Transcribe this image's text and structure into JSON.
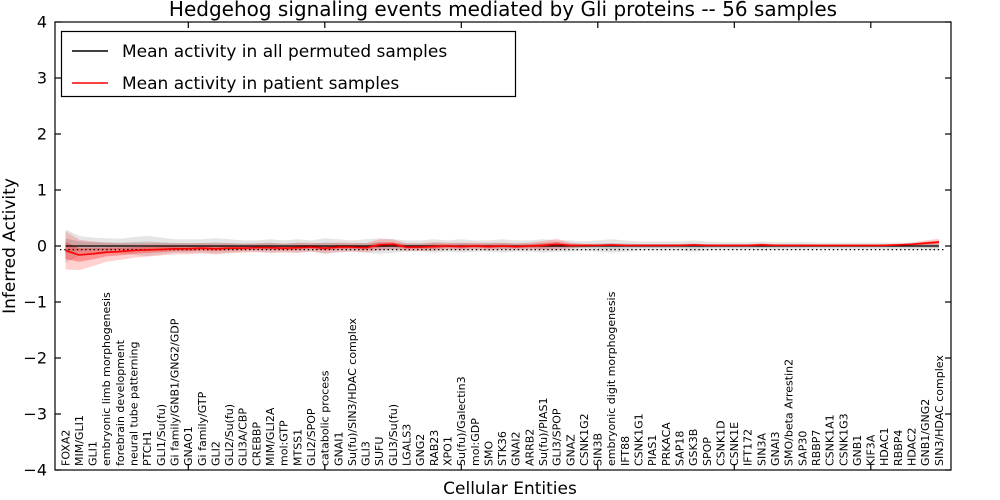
{
  "chart_data": {
    "type": "line",
    "title": "Hedgehog signaling events mediated by Gli proteins -- 56 samples",
    "xlabel": "Cellular Entities",
    "ylabel": "Inferred Activity",
    "ylim": [
      -4,
      4
    ],
    "yticks": [
      4,
      3,
      2,
      1,
      0,
      -1,
      -2,
      -3,
      -4
    ],
    "xticks_numeric": [
      10,
      20,
      30,
      40,
      50,
      60
    ],
    "grid": false,
    "legend_position": "upper left",
    "sample_count": "56",
    "categories": [
      "FOXA2",
      "MIM/GLI1",
      "GLI1",
      "embryonic limb morphogenesis",
      "forebrain development",
      "neural tube patterning",
      "PTCH1",
      "GLI1/Su(fu)",
      "Gi family/GNB1/GNG2/GDP",
      "GNAO1",
      "Gi family/GTP",
      "GLI2",
      "GLI2/Su(fu)",
      "GLI3A/CBP",
      "CREBBP",
      "MIM/GLI2A",
      "mol:GTP",
      "MTSS1",
      "GLI2/SPOP",
      "catabolic process",
      "GNAI1",
      "Su(fu)/SIN3/HDAC complex",
      "GLI3",
      "SUFU",
      "GLI3/Su(fu)",
      "LGALS3",
      "GNG2",
      "RAB23",
      "XPO1",
      "Su(fu)/Galectin3",
      "mol:GDP",
      "SMO",
      "STK36",
      "GNAI2",
      "ARRB2",
      "Su(fu)/PIAS1",
      "GLI3/SPOP",
      "GNAZ",
      "CSNK1G2",
      "SIN3B",
      "embryonic digit morphogenesis",
      "IFT88",
      "CSNK1G1",
      "PIAS1",
      "PRKACA",
      "SAP18",
      "GSK3B",
      "SPOP",
      "CSNK1D",
      "CSNK1E",
      "IFT172",
      "SIN3A",
      "GNAI3",
      "SMO/beta Arrestin2",
      "SAP30",
      "RBBP7",
      "CSNK1A1",
      "CSNK1G3",
      "GNB1",
      "KIF3A",
      "HDAC1",
      "RBBP4",
      "HDAC2",
      "GNB1/GNG2",
      "SIN3/HDAC complex"
    ],
    "series": [
      {
        "name": "Mean activity in all permuted samples",
        "color": "#000000",
        "band_color": "rgba(0,0,0,0.10)",
        "band_inner_color": "rgba(0,0,0,0.13)",
        "values": [
          0,
          0,
          0,
          0,
          0,
          0,
          0,
          0,
          0,
          0,
          0,
          0,
          0,
          0,
          0,
          0,
          0,
          0,
          0,
          0,
          0,
          0,
          0,
          0,
          0,
          0,
          0,
          0,
          0,
          0,
          0,
          0,
          0,
          0,
          0,
          0,
          0,
          0,
          0,
          0,
          0,
          0,
          0,
          0,
          0,
          0,
          0,
          0,
          0,
          0,
          0,
          0,
          0,
          0,
          0,
          0,
          0,
          0,
          0,
          0,
          0,
          0,
          0,
          0,
          0
        ],
        "std": [
          0.3,
          0.18,
          0.15,
          0.14,
          0.13,
          0.16,
          0.18,
          0.15,
          0.12,
          0.12,
          0.12,
          0.14,
          0.12,
          0.1,
          0.1,
          0.12,
          0.1,
          0.12,
          0.1,
          0.14,
          0.12,
          0.1,
          0.12,
          0.14,
          0.12,
          0.1,
          0.1,
          0.12,
          0.1,
          0.12,
          0.1,
          0.1,
          0.12,
          0.1,
          0.1,
          0.12,
          0.1,
          0.1,
          0.08,
          0.1,
          0.12,
          0.1,
          0.08,
          0.08,
          0.08,
          0.08,
          0.1,
          0.08,
          0.07,
          0.07,
          0.07,
          0.08,
          0.07,
          0.07,
          0.07,
          0.06,
          0.06,
          0.06,
          0.06,
          0.06,
          0.06,
          0.06,
          0.06,
          0.07,
          0.08
        ]
      },
      {
        "name": "Mean activity in patient samples",
        "color": "#ff0000",
        "band_color": "rgba(255,0,0,0.18)",
        "band_inner_color": "rgba(255,0,0,0.30)",
        "values": [
          -0.08,
          -0.16,
          -0.14,
          -0.11,
          -0.1,
          -0.08,
          -0.07,
          -0.06,
          -0.05,
          -0.05,
          -0.04,
          -0.05,
          -0.04,
          -0.04,
          -0.03,
          -0.03,
          -0.04,
          -0.03,
          -0.02,
          -0.04,
          -0.02,
          -0.02,
          -0.03,
          0.02,
          0.03,
          -0.02,
          -0.02,
          -0.01,
          0.0,
          -0.01,
          0.0,
          -0.01,
          0.0,
          -0.01,
          0.0,
          0.01,
          0.03,
          0.01,
          0.01,
          0.01,
          0.02,
          0.01,
          0.01,
          0.01,
          0.01,
          0.01,
          0.02,
          0.01,
          0.01,
          0.01,
          0.01,
          0.02,
          0.01,
          0.01,
          0.01,
          0.01,
          0.01,
          0.01,
          0.01,
          0.01,
          0.01,
          0.02,
          0.03,
          0.05,
          0.07
        ],
        "std": [
          0.34,
          0.27,
          0.22,
          0.17,
          0.15,
          0.13,
          0.12,
          0.11,
          0.1,
          0.1,
          0.09,
          0.1,
          0.09,
          0.08,
          0.08,
          0.09,
          0.08,
          0.09,
          0.08,
          0.09,
          0.08,
          0.08,
          0.08,
          0.1,
          0.09,
          0.07,
          0.07,
          0.08,
          0.06,
          0.07,
          0.06,
          0.07,
          0.06,
          0.06,
          0.06,
          0.08,
          0.1,
          0.05,
          0.03,
          0.02,
          0.02,
          0.02,
          0.02,
          0.02,
          0.02,
          0.02,
          0.02,
          0.02,
          0.02,
          0.02,
          0.02,
          0.03,
          0.02,
          0.02,
          0.02,
          0.02,
          0.02,
          0.02,
          0.02,
          0.02,
          0.02,
          0.02,
          0.03,
          0.05,
          0.06
        ]
      }
    ]
  }
}
